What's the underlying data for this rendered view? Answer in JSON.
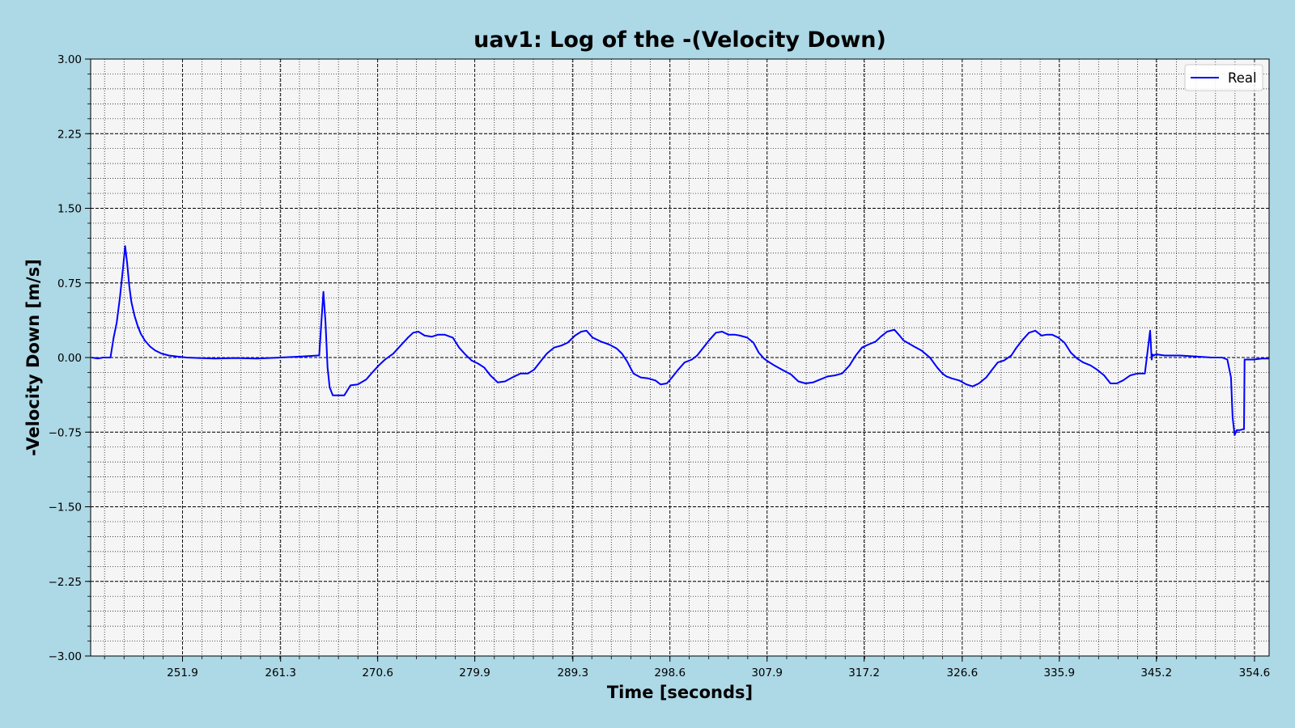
{
  "chart_data": {
    "type": "line",
    "title": "uav1: Log of the -(Velocity Down)",
    "xlabel": "Time [seconds]",
    "ylabel": "-Velocity Down [m/s]",
    "xlim": [
      243.1,
      356.0
    ],
    "ylim": [
      -3.0,
      3.0
    ],
    "x_tick_values": [
      251.9,
      261.3,
      270.6,
      279.9,
      289.3,
      298.6,
      307.9,
      317.2,
      326.6,
      335.9,
      345.2,
      354.6
    ],
    "x_tick_labels": [
      "251.9",
      "261.3",
      "270.6",
      "279.9",
      "289.3",
      "298.6",
      "307.9",
      "317.2",
      "326.6",
      "335.9",
      "345.2",
      "354.6"
    ],
    "y_tick_values": [
      3.0,
      2.25,
      1.5,
      0.75,
      0.0,
      -0.75,
      -1.5,
      -2.25,
      -3.0
    ],
    "y_tick_labels": [
      "3.00",
      "2.25",
      "1.50",
      "0.75",
      "0.00",
      "−0.75",
      "−1.50",
      "−2.25",
      "−3.00"
    ],
    "grid": true,
    "legend_position": "top-right",
    "colors": {
      "background": "#add8e6",
      "plot_area": "#f5f5f5",
      "series": "#0000ff"
    },
    "series": [
      {
        "name": "Real",
        "x": [
          243.2,
          243.8,
          244.3,
          244.7,
          245.0,
          245.3,
          245.6,
          245.9,
          246.2,
          246.4,
          246.6,
          246.8,
          247.0,
          247.3,
          247.6,
          247.9,
          248.3,
          248.8,
          249.3,
          249.9,
          250.6,
          251.4,
          252.3,
          253.5,
          255.0,
          257.0,
          259.0,
          261.3,
          263.3,
          264.8,
          265.0,
          265.2,
          265.4,
          265.6,
          265.8,
          266.0,
          266.3,
          266.8,
          267.4,
          268.0,
          268.7,
          269.5,
          270.0,
          270.7,
          271.3,
          272.1,
          272.8,
          273.5,
          274.0,
          274.5,
          275.1,
          275.8,
          276.4,
          277.0,
          277.8,
          278.4,
          279.0,
          279.6,
          280.2,
          280.8,
          281.4,
          282.1,
          282.8,
          283.5,
          284.3,
          285.0,
          285.6,
          286.2,
          286.8,
          287.5,
          288.2,
          288.8,
          289.5,
          290.1,
          290.6,
          291.2,
          292.0,
          292.8,
          293.5,
          294.0,
          294.5,
          295.1,
          295.8,
          296.5,
          297.2,
          297.7,
          298.3,
          298.8,
          299.4,
          300.0,
          300.7,
          301.2,
          301.8,
          302.4,
          303.0,
          303.6,
          304.2,
          304.8,
          305.3,
          306.0,
          306.6,
          307.1,
          307.6,
          308.0,
          308.6,
          309.3,
          310.2,
          310.9,
          311.6,
          312.3,
          313.0,
          313.7,
          314.4,
          315.1,
          315.8,
          316.4,
          317.0,
          317.6,
          318.3,
          318.8,
          319.4,
          320.1,
          320.6,
          321.0,
          321.5,
          322.0,
          322.7,
          323.5,
          324.2,
          324.7,
          325.1,
          325.6,
          326.3,
          327.0,
          327.6,
          328.2,
          328.9,
          329.4,
          330.0,
          330.6,
          331.3,
          331.8,
          332.4,
          333.0,
          333.6,
          334.2,
          334.7,
          335.2,
          335.8,
          336.4,
          337.0,
          337.6,
          338.2,
          338.9,
          339.5,
          340.2,
          340.8,
          341.4,
          342.0,
          342.7,
          343.4,
          344.1,
          344.6,
          344.75,
          344.85,
          344.95,
          345.1,
          345.3,
          346.0,
          347.5,
          349.0,
          350.5,
          351.5,
          352.0,
          352.35,
          352.5,
          352.7,
          352.9,
          353.2,
          353.5,
          353.6,
          353.65,
          354.0,
          354.5,
          355.3,
          356.0
        ],
        "values": [
          0.0,
          -0.01,
          0.0,
          0.0,
          0.0,
          0.2,
          0.35,
          0.6,
          0.9,
          1.12,
          0.95,
          0.72,
          0.56,
          0.42,
          0.32,
          0.24,
          0.17,
          0.11,
          0.07,
          0.04,
          0.02,
          0.01,
          0.0,
          -0.005,
          -0.01,
          -0.005,
          -0.01,
          0.0,
          0.01,
          0.02,
          0.02,
          0.35,
          0.66,
          0.35,
          -0.1,
          -0.3,
          -0.38,
          -0.38,
          -0.38,
          -0.28,
          -0.27,
          -0.22,
          -0.16,
          -0.08,
          -0.02,
          0.04,
          0.12,
          0.2,
          0.25,
          0.26,
          0.22,
          0.21,
          0.23,
          0.23,
          0.2,
          0.1,
          0.03,
          -0.03,
          -0.06,
          -0.1,
          -0.18,
          -0.25,
          -0.24,
          -0.2,
          -0.16,
          -0.16,
          -0.12,
          -0.04,
          0.04,
          0.1,
          0.12,
          0.15,
          0.22,
          0.26,
          0.27,
          0.2,
          0.16,
          0.13,
          0.09,
          0.04,
          -0.04,
          -0.16,
          -0.2,
          -0.21,
          -0.23,
          -0.27,
          -0.26,
          -0.2,
          -0.12,
          -0.05,
          -0.02,
          0.02,
          0.1,
          0.18,
          0.25,
          0.26,
          0.23,
          0.23,
          0.22,
          0.2,
          0.15,
          0.05,
          -0.01,
          -0.04,
          -0.08,
          -0.12,
          -0.17,
          -0.24,
          -0.26,
          -0.25,
          -0.22,
          -0.19,
          -0.18,
          -0.16,
          -0.08,
          0.02,
          0.1,
          0.13,
          0.16,
          0.21,
          0.26,
          0.28,
          0.22,
          0.17,
          0.14,
          0.11,
          0.07,
          0.0,
          -0.1,
          -0.16,
          -0.19,
          -0.21,
          -0.23,
          -0.27,
          -0.29,
          -0.26,
          -0.2,
          -0.13,
          -0.05,
          -0.03,
          0.02,
          0.1,
          0.18,
          0.25,
          0.27,
          0.22,
          0.23,
          0.23,
          0.2,
          0.15,
          0.05,
          -0.01,
          -0.05,
          -0.08,
          -0.12,
          -0.18,
          -0.26,
          -0.26,
          -0.23,
          -0.18,
          -0.16,
          -0.16,
          0.27,
          -0.02,
          0.03,
          0.02,
          0.03,
          0.03,
          0.02,
          0.02,
          0.01,
          0.0,
          0.0,
          -0.02,
          -0.2,
          -0.6,
          -0.78,
          -0.73,
          -0.73,
          -0.72,
          -0.72,
          -0.02,
          -0.02,
          -0.02,
          -0.01,
          -0.01
        ]
      }
    ]
  }
}
